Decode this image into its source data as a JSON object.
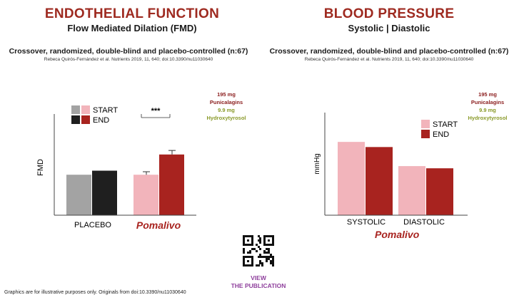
{
  "colors": {
    "accent": "#9e2a20",
    "placebo_start": "#a3a3a3",
    "placebo_end": "#1f1f1f",
    "active_start": "#f2b4bb",
    "active_end": "#a8231f",
    "dose_punicalagins": "#8b1d1d",
    "dose_hydroxytyrosol": "#8a9a2a"
  },
  "left": {
    "title": "ENDOTHELIAL FUNCTION",
    "subtitle": "Flow Mediated Dilation (FMD)",
    "description": "Crossover, randomized, double-blind and placebo-controlled (n:67)",
    "reference": "Rebeca Quirós-Fernández et al. Nutrients 2019, 11, 640; doi:10.3390/nu11030640",
    "dose": {
      "line1": "195 mg",
      "line2": "Punicalagins",
      "line3": "9.9 mg",
      "line4": "Hydroxytyrosol"
    }
  },
  "right": {
    "title": "BLOOD PRESSURE",
    "subtitle": "Systolic | Diastolic",
    "description": "Crossover, randomized, double-blind and placebo-controlled (n:67)",
    "reference": "Rebeca Quirós-Fernández et al. Nutrients 2019, 11, 640; doi:10.3390/nu11030640",
    "dose": {
      "line1": "195 mg",
      "line2": "Punicalagins",
      "line3": "9.9 mg",
      "line4": "Hydroxytyrosol"
    }
  },
  "footer": {
    "disclaimer": "Graphics are for illustrative purposes only. Originals from doi:10.3390/nu11030640",
    "view_line1": "VIEW",
    "view_line2": "THE PUBLICATION"
  },
  "brand": {
    "name": "Pomalivo"
  },
  "chart_data": [
    {
      "type": "bar",
      "ylabel": "FMD",
      "categories": [
        "PLACEBO",
        "Pomalivo"
      ],
      "legend": [
        "START",
        "END"
      ],
      "legend_placement": "top-left",
      "annotations": [
        "***"
      ],
      "series": [
        {
          "name": "START",
          "values": [
            40,
            40
          ],
          "errors": [
            0,
            3
          ]
        },
        {
          "name": "END",
          "values": [
            44,
            60
          ],
          "errors": [
            0,
            4
          ]
        }
      ],
      "ylim": [
        0,
        100
      ],
      "grid": false
    },
    {
      "type": "bar",
      "ylabel": "mmHg",
      "categories": [
        "SYSTOLIC",
        "DIASTOLIC"
      ],
      "legend": [
        "START",
        "END"
      ],
      "legend_placement": "top-right",
      "series": [
        {
          "name": "START",
          "values": [
            100,
            67
          ]
        },
        {
          "name": "END",
          "values": [
            93,
            64
          ]
        }
      ],
      "ylim": [
        0,
        140
      ],
      "grid": false
    }
  ]
}
